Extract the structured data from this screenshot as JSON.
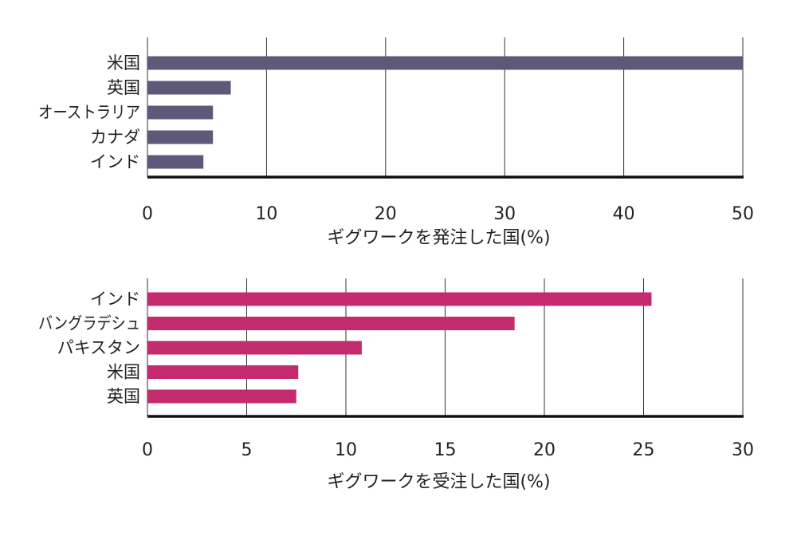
{
  "chart_data": [
    {
      "type": "bar",
      "orientation": "horizontal",
      "categories": [
        "米国",
        "英国",
        "オーストラリア",
        "カナダ",
        "インド"
      ],
      "values": [
        50,
        7,
        5.5,
        5.5,
        4.7
      ],
      "xlabel": "ギグワークを発注した国(%)",
      "xlim": [
        0,
        50
      ],
      "xticks": [
        0,
        10,
        20,
        30,
        40,
        50
      ],
      "xtick_labels": [
        "0",
        "10",
        "20",
        "30",
        "40",
        "50"
      ],
      "grid": "vertical",
      "color": "#5e5879"
    },
    {
      "type": "bar",
      "orientation": "horizontal",
      "categories": [
        "インド",
        "バングラデシュ",
        "パキスタン",
        "米国",
        "英国"
      ],
      "values": [
        25.4,
        18.5,
        10.8,
        7.6,
        7.5
      ],
      "xlabel": "ギグワークを受注した国(%)",
      "xlim": [
        0,
        30
      ],
      "xticks": [
        0,
        5,
        10,
        15,
        20,
        25,
        30
      ],
      "xtick_labels": [
        "0",
        "5",
        "10",
        "15",
        "20",
        "25",
        "30"
      ],
      "grid": "vertical",
      "color": "#c42a6e"
    }
  ]
}
